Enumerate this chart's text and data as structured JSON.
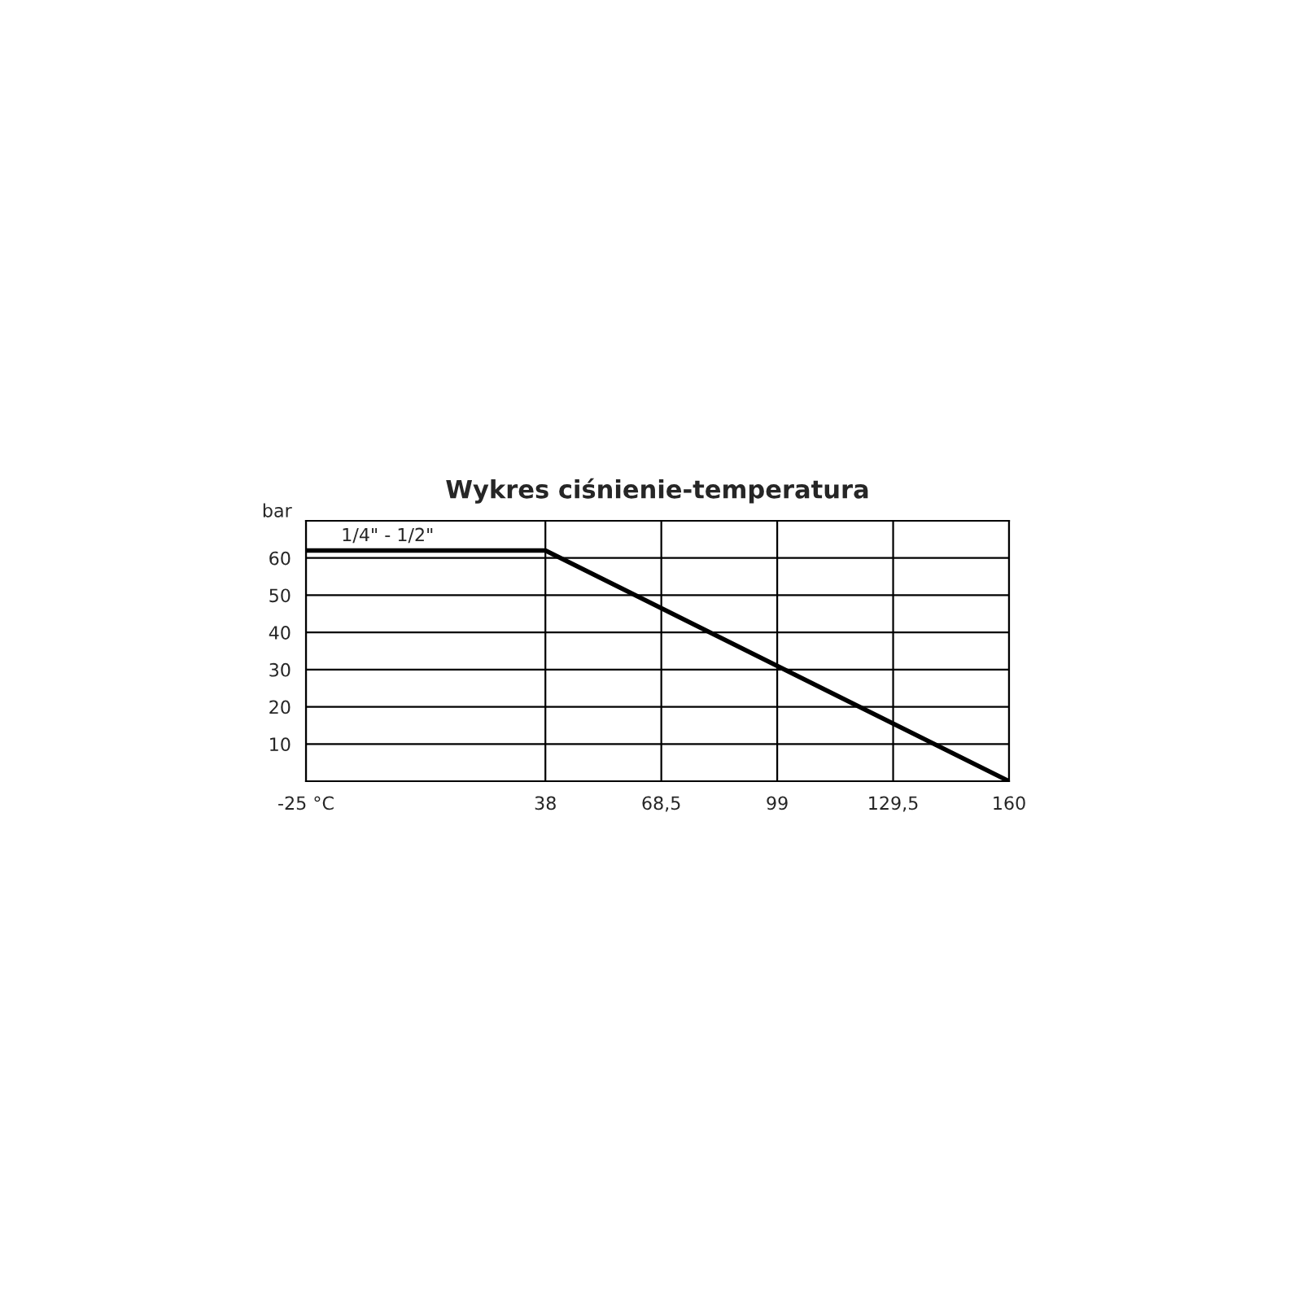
{
  "chart_data": {
    "type": "line",
    "title": "Wykres ciśnienie-temperatura",
    "ylabel": "bar",
    "series": [
      {
        "name": "1/4\" - 1/2\"",
        "color": "#000000",
        "x": [
          -25,
          38,
          160
        ],
        "values": [
          62,
          62,
          0
        ]
      }
    ],
    "xlim": [
      -25,
      160
    ],
    "xticks": [
      {
        "value": -25,
        "label": "-25 °C"
      },
      38,
      {
        "value": 68.5,
        "label": "68,5"
      },
      99,
      {
        "value": 129.5,
        "label": "129,5"
      },
      160
    ],
    "ylim": [
      0,
      70
    ],
    "yticks": [
      10,
      20,
      30,
      40,
      50,
      60
    ],
    "grid": true,
    "legend": false,
    "marker": "none",
    "line_style": "solid"
  }
}
